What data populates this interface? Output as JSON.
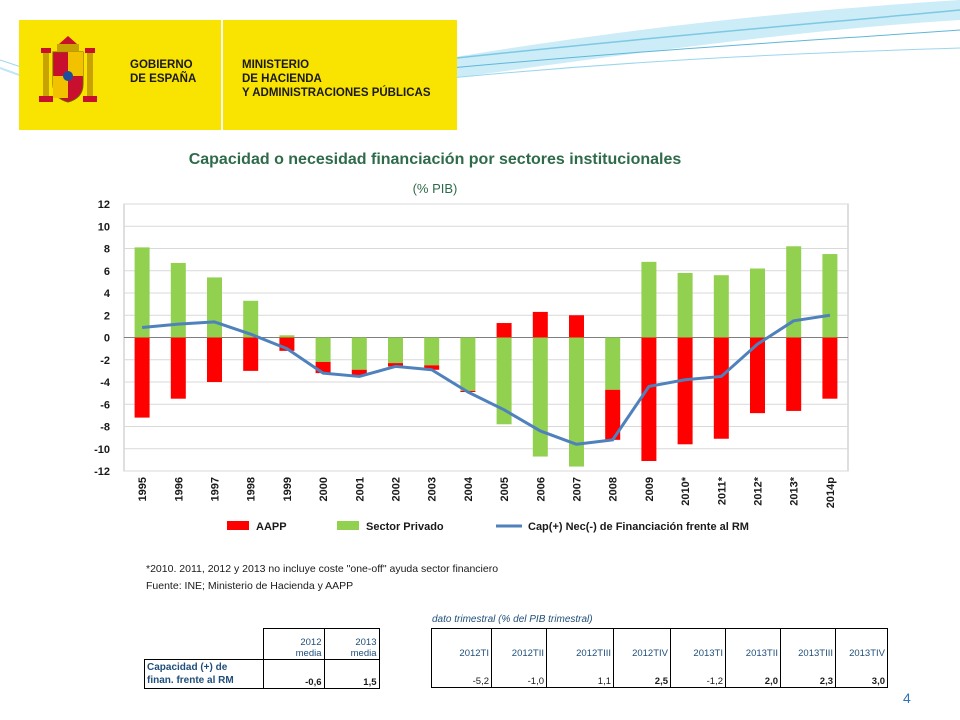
{
  "header": {
    "gov_line1": "GOBIERNO",
    "gov_line2": "DE ESPAÑA",
    "min_line1": "MINISTERIO",
    "min_line2": "DE HACIENDA",
    "min_line3": "Y ADMINISTRACIONES PÚBLICAS",
    "brand_yellow": "#f9e300"
  },
  "chart_data": {
    "type": "bar",
    "title": "Capacidad o necesidad financiación por sectores institucionales",
    "subtitle": "(% PIB)",
    "categories": [
      "1995",
      "1996",
      "1997",
      "1998",
      "1999",
      "2000",
      "2001",
      "2002",
      "2003",
      "2004",
      "2005",
      "2006",
      "2007",
      "2008",
      "2009",
      "2010*",
      "2011*",
      "2012*",
      "2013*",
      "2014p"
    ],
    "ylim": [
      -12,
      12
    ],
    "yticks": [
      -12,
      -10,
      -8,
      -6,
      -4,
      -2,
      0,
      2,
      4,
      6,
      8,
      10,
      12
    ],
    "grid": true,
    "legend_position": "bottom",
    "series": [
      {
        "name": "AAPP",
        "kind": "bar",
        "color": "#ff0000",
        "values": [
          -7.2,
          -5.5,
          -4.0,
          -3.0,
          -1.2,
          -1.0,
          -0.5,
          -0.3,
          -0.4,
          -0.1,
          1.3,
          2.3,
          2.0,
          -4.5,
          -11.1,
          -9.6,
          -9.1,
          -6.8,
          -6.6,
          -5.5
        ]
      },
      {
        "name": "Sector Privado",
        "kind": "bar",
        "color": "#92d050",
        "values": [
          8.1,
          6.7,
          5.4,
          3.3,
          0.2,
          -2.2,
          -2.9,
          -2.3,
          -2.5,
          -4.8,
          -7.8,
          -10.7,
          -11.6,
          -4.7,
          6.8,
          5.8,
          5.6,
          6.2,
          8.2,
          7.5
        ]
      },
      {
        "name": "Cap(+) Nec(-) de Financiación frente al RM",
        "kind": "line",
        "color": "#4f81bd",
        "values": [
          0.9,
          1.2,
          1.4,
          0.3,
          -1.0,
          -3.2,
          -3.5,
          -2.6,
          -2.9,
          -4.9,
          -6.5,
          -8.4,
          -9.6,
          -9.2,
          -4.4,
          -3.8,
          -3.5,
          -0.6,
          1.5,
          2.0
        ]
      }
    ]
  },
  "footnotes": {
    "note": "*2010. 2011, 2012 y 2013 no incluye coste \"one-off\" ayuda sector financiero",
    "source": "Fuente: INE;  Ministerio de Hacienda y AAPP"
  },
  "table": {
    "caption": "dato trimestral (% del PIB trimestral)",
    "row_label_1": "Capacidad  (+) de",
    "row_label_2": "finan. frente al RM",
    "annual": [
      {
        "h1": "2012",
        "h2": "media",
        "v": "-0,6"
      },
      {
        "h1": "2013",
        "h2": "media",
        "v": "1,5"
      }
    ],
    "quarterly": [
      {
        "h": "2012TI",
        "v": "-5,2"
      },
      {
        "h": "2012TII",
        "v": "-1,0"
      },
      {
        "h": "2012TIII",
        "v": "1,1"
      },
      {
        "h": "2012TIV",
        "v": "2,5"
      },
      {
        "h": "2013TI",
        "v": "-1,2"
      },
      {
        "h": "2013TII",
        "v": "2,0"
      },
      {
        "h": "2013TIII",
        "v": "2,3"
      },
      {
        "h": "2013TIV",
        "v": "3,0"
      }
    ]
  },
  "page_number": "4"
}
